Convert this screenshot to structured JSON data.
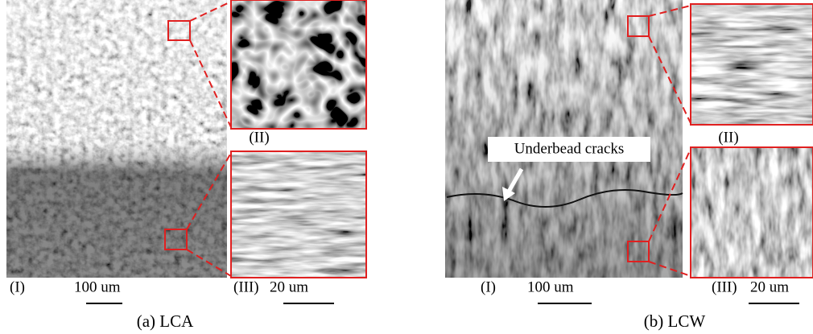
{
  "panels": [
    {
      "caption": "(a) LCA",
      "main_label": "(I)",
      "main_scale": "100 um",
      "inset_top_label": "(II)",
      "inset_bottom_label": "(III)",
      "inset_scale": "20 um"
    },
    {
      "caption": "(b) LCW",
      "main_label": "(I)",
      "main_scale": "100 um",
      "inset_top_label": "(II)",
      "inset_bottom_label": "(III)",
      "inset_scale": "20 um",
      "annotation": "Underbead cracks"
    }
  ]
}
